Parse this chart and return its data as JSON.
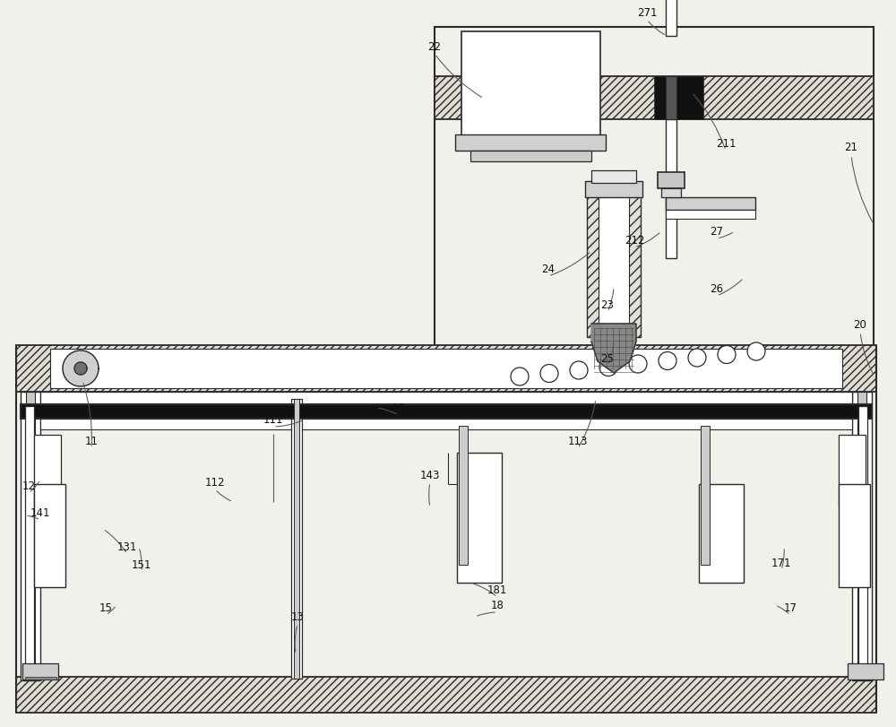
{
  "bg_color": "#f2f0eb",
  "lc": "#2a2a2a",
  "white": "#ffffff",
  "light_gray": "#d8d8d8",
  "mid_gray": "#aaaaaa",
  "dark_fill": "#111111",
  "hatch_fc": "#e0ddd5"
}
